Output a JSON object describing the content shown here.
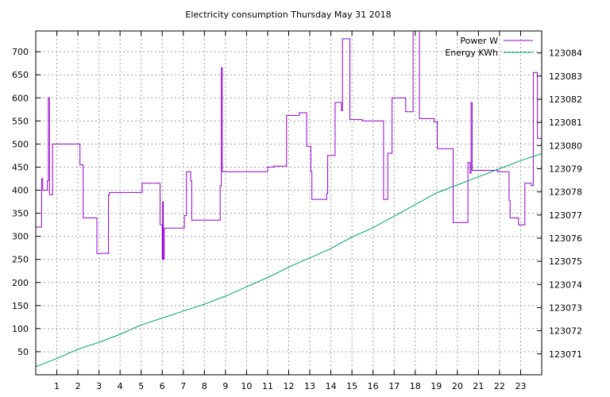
{
  "chart_data": {
    "type": "line",
    "title": "Electricity consumption Thursday May 31 2018",
    "xlabel": "",
    "ylabel": "",
    "y2label": "",
    "grid": true,
    "legend_position": "top-right",
    "xlim": [
      0,
      24
    ],
    "ylim": [
      0,
      745
    ],
    "y2lim": [
      123070.1,
      123084.95
    ],
    "x_ticks": [
      1,
      2,
      3,
      4,
      5,
      6,
      7,
      8,
      9,
      10,
      11,
      12,
      13,
      14,
      15,
      16,
      17,
      18,
      19,
      20,
      21,
      22,
      23
    ],
    "y_ticks": [
      50,
      100,
      150,
      200,
      250,
      300,
      350,
      400,
      450,
      500,
      550,
      600,
      650,
      700
    ],
    "y2_ticks": [
      123071,
      123072,
      123073,
      123074,
      123075,
      123076,
      123077,
      123078,
      123079,
      123080,
      123081,
      123082,
      123083,
      123084
    ],
    "series": [
      {
        "name": "Power W",
        "axis": "y",
        "color": "#9400d3",
        "step": true,
        "x": [
          0.0,
          0.28,
          0.33,
          0.55,
          0.6,
          0.65,
          0.7,
          0.8,
          1.5,
          2.1,
          2.25,
          2.7,
          2.9,
          3.4,
          3.45,
          3.5,
          4.3,
          5.05,
          5.9,
          5.95,
          6.0,
          6.02,
          6.05,
          6.1,
          7.0,
          7.05,
          7.15,
          7.35,
          7.4,
          8.7,
          8.75,
          8.8,
          8.85,
          8.9,
          9.8,
          11.0,
          11.3,
          11.9,
          12.0,
          12.5,
          12.6,
          12.85,
          13.05,
          13.1,
          13.8,
          13.85,
          14.2,
          14.5,
          14.55,
          14.9,
          15.5,
          16.5,
          16.7,
          16.9,
          17.2,
          17.55,
          17.7,
          17.9,
          18.2,
          18.9,
          19.0,
          19.05,
          19.8,
          20.1,
          20.5,
          20.6,
          20.65,
          20.7,
          21.5,
          21.9,
          22.0,
          22.45,
          22.5,
          22.55,
          22.9,
          23.2,
          23.3,
          23.35,
          23.5,
          23.6,
          23.8,
          24.0
        ],
        "values": [
          320,
          425,
          400,
          420,
          600,
          390,
          390,
          500,
          500,
          455,
          340,
          340,
          263,
          263,
          390,
          395,
          395,
          415,
          325,
          325,
          250,
          375,
          250,
          318,
          318,
          345,
          440,
          420,
          335,
          335,
          410,
          665,
          440,
          440,
          440,
          450,
          452,
          562,
          562,
          568,
          568,
          495,
          440,
          380,
          393,
          475,
          590,
          572,
          728,
          553,
          550,
          380,
          480,
          600,
          600,
          570,
          570,
          745,
          555,
          548,
          548,
          490,
          330,
          330,
          460,
          437,
          590,
          443,
          443,
          440,
          440,
          378,
          340,
          340,
          325,
          415,
          415,
          415,
          410,
          655,
          512,
          505
        ],
        "end_x": 24.0
      },
      {
        "name": "Energy KWh",
        "axis": "y2",
        "color": "#009e73",
        "step": false,
        "x": [
          0,
          1,
          2,
          3,
          4,
          5,
          6,
          7,
          8,
          9,
          10,
          11,
          12,
          13,
          14,
          15,
          16,
          17,
          18,
          19,
          20,
          21,
          22,
          23,
          24
        ],
        "values": [
          123070.45,
          123070.8,
          123071.2,
          123071.5,
          123071.85,
          123072.25,
          123072.55,
          123072.85,
          123073.15,
          123073.5,
          123073.9,
          123074.3,
          123074.75,
          123075.15,
          123075.55,
          123076.05,
          123076.45,
          123076.95,
          123077.45,
          123077.95,
          123078.3,
          123078.65,
          123079.0,
          123079.35,
          123079.65
        ]
      }
    ]
  }
}
